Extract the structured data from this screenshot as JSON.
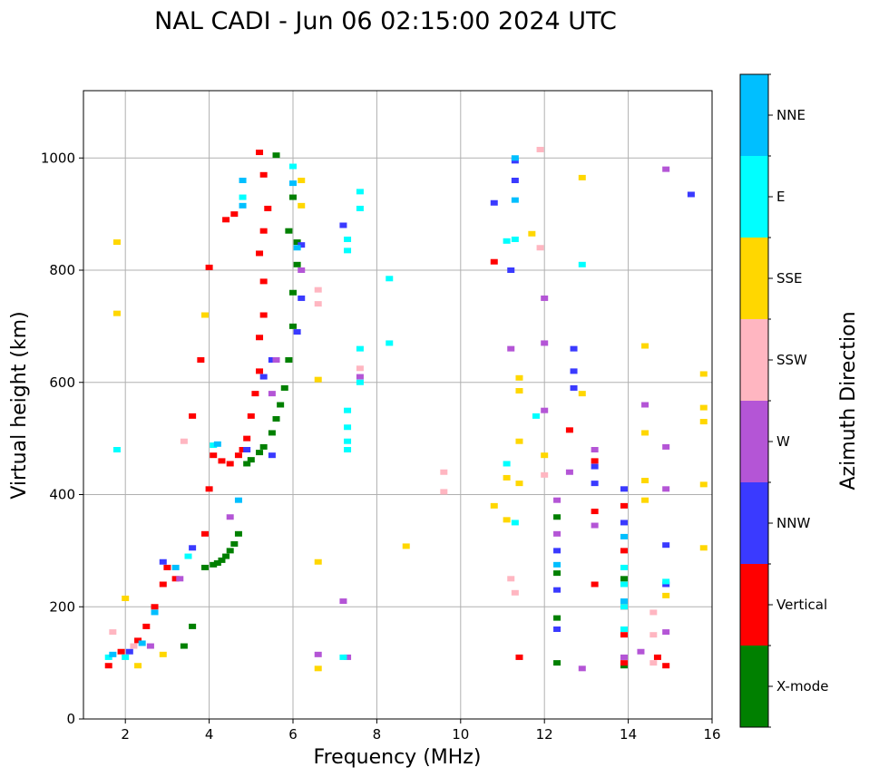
{
  "chart_data": {
    "type": "scatter",
    "title": "NAL CADI - Jun 06 02:15:00 2024 UTC",
    "xlabel": "Frequency (MHz)",
    "ylabel": "Virtual height (km)",
    "xlim": [
      1.0,
      16.0
    ],
    "ylim": [
      0,
      1120
    ],
    "xticks": [
      2,
      4,
      6,
      8,
      10,
      12,
      14,
      16
    ],
    "yticks": [
      0,
      200,
      400,
      600,
      800,
      1000
    ],
    "grid": true,
    "colorbar": {
      "label": "Azimuth Direction",
      "categories": [
        {
          "name": "X-mode",
          "color": "#008000"
        },
        {
          "name": "Vertical",
          "color": "#ff0000"
        },
        {
          "name": "NNW",
          "color": "#3a3aff"
        },
        {
          "name": "W",
          "color": "#b455d6"
        },
        {
          "name": "SSW",
          "color": "#ffb6c1"
        },
        {
          "name": "SSE",
          "color": "#ffd700"
        },
        {
          "name": "E",
          "color": "#00ffff"
        },
        {
          "name": "NNE",
          "color": "#00bfff"
        }
      ]
    },
    "series": [
      {
        "name": "X-mode",
        "points": [
          [
            3.4,
            130
          ],
          [
            3.6,
            165
          ],
          [
            3.9,
            270
          ],
          [
            4.1,
            275
          ],
          [
            4.2,
            278
          ],
          [
            4.3,
            283
          ],
          [
            4.4,
            290
          ],
          [
            4.5,
            300
          ],
          [
            4.6,
            312
          ],
          [
            4.7,
            330
          ],
          [
            4.9,
            455
          ],
          [
            5.0,
            462
          ],
          [
            5.2,
            475
          ],
          [
            5.3,
            485
          ],
          [
            5.5,
            510
          ],
          [
            5.6,
            535
          ],
          [
            5.7,
            560
          ],
          [
            5.8,
            590
          ],
          [
            5.9,
            640
          ],
          [
            6.0,
            700
          ],
          [
            6.0,
            760
          ],
          [
            6.1,
            810
          ],
          [
            6.1,
            850
          ],
          [
            5.9,
            870
          ],
          [
            6.0,
            930
          ],
          [
            5.6,
            1005
          ],
          [
            12.3,
            100
          ],
          [
            12.3,
            180
          ],
          [
            12.3,
            260
          ],
          [
            12.3,
            360
          ],
          [
            13.9,
            95
          ],
          [
            13.9,
            250
          ]
        ]
      },
      {
        "name": "Vertical",
        "points": [
          [
            1.6,
            95
          ],
          [
            1.9,
            120
          ],
          [
            2.3,
            140
          ],
          [
            2.5,
            165
          ],
          [
            2.7,
            200
          ],
          [
            2.9,
            240
          ],
          [
            3.0,
            270
          ],
          [
            3.2,
            250
          ],
          [
            3.9,
            330
          ],
          [
            4.0,
            410
          ],
          [
            4.1,
            470
          ],
          [
            4.3,
            460
          ],
          [
            4.5,
            455
          ],
          [
            4.7,
            470
          ],
          [
            4.8,
            480
          ],
          [
            4.9,
            500
          ],
          [
            5.0,
            540
          ],
          [
            5.1,
            580
          ],
          [
            5.2,
            620
          ],
          [
            5.2,
            680
          ],
          [
            5.3,
            720
          ],
          [
            5.3,
            780
          ],
          [
            5.2,
            830
          ],
          [
            5.3,
            870
          ],
          [
            5.4,
            910
          ],
          [
            5.3,
            970
          ],
          [
            5.2,
            1010
          ],
          [
            4.4,
            890
          ],
          [
            4.6,
            900
          ],
          [
            4.0,
            805
          ],
          [
            3.8,
            640
          ],
          [
            3.6,
            540
          ],
          [
            12.6,
            515
          ],
          [
            13.2,
            240
          ],
          [
            13.2,
            370
          ],
          [
            13.2,
            460
          ],
          [
            13.9,
            100
          ],
          [
            13.9,
            150
          ],
          [
            13.9,
            200
          ],
          [
            13.9,
            300
          ],
          [
            13.9,
            380
          ],
          [
            14.7,
            110
          ],
          [
            14.9,
            95
          ],
          [
            10.8,
            815
          ],
          [
            11.4,
            110
          ]
        ]
      },
      {
        "name": "NNW",
        "points": [
          [
            2.1,
            120
          ],
          [
            2.9,
            280
          ],
          [
            3.6,
            305
          ],
          [
            4.9,
            480
          ],
          [
            5.5,
            470
          ],
          [
            6.2,
            845
          ],
          [
            6.2,
            750
          ],
          [
            6.1,
            690
          ],
          [
            5.5,
            640
          ],
          [
            5.3,
            610
          ],
          [
            7.2,
            880
          ],
          [
            10.8,
            920
          ],
          [
            11.3,
            995
          ],
          [
            11.3,
            960
          ],
          [
            11.2,
            800
          ],
          [
            12.3,
            160
          ],
          [
            12.3,
            230
          ],
          [
            12.3,
            300
          ],
          [
            13.2,
            420
          ],
          [
            13.2,
            450
          ],
          [
            12.7,
            590
          ],
          [
            12.7,
            620
          ],
          [
            12.7,
            660
          ],
          [
            13.9,
            350
          ],
          [
            13.9,
            410
          ],
          [
            14.9,
            240
          ],
          [
            14.9,
            310
          ],
          [
            15.5,
            935
          ]
        ]
      },
      {
        "name": "W",
        "points": [
          [
            2.6,
            130
          ],
          [
            3.3,
            250
          ],
          [
            4.5,
            360
          ],
          [
            5.5,
            580
          ],
          [
            5.6,
            640
          ],
          [
            6.2,
            800
          ],
          [
            6.6,
            115
          ],
          [
            7.3,
            110
          ],
          [
            7.2,
            210
          ],
          [
            7.6,
            610
          ],
          [
            11.2,
            660
          ],
          [
            12.0,
            670
          ],
          [
            12.0,
            750
          ],
          [
            12.0,
            550
          ],
          [
            12.3,
            330
          ],
          [
            12.3,
            390
          ],
          [
            12.6,
            440
          ],
          [
            13.2,
            345
          ],
          [
            13.2,
            480
          ],
          [
            12.9,
            90
          ],
          [
            13.9,
            110
          ],
          [
            14.3,
            120
          ],
          [
            14.4,
            560
          ],
          [
            14.9,
            155
          ],
          [
            14.9,
            410
          ],
          [
            14.9,
            485
          ],
          [
            14.9,
            980
          ]
        ]
      },
      {
        "name": "SSW",
        "points": [
          [
            1.7,
            155
          ],
          [
            2.2,
            130
          ],
          [
            3.4,
            495
          ],
          [
            6.6,
            765
          ],
          [
            6.6,
            740
          ],
          [
            7.6,
            625
          ],
          [
            11.2,
            250
          ],
          [
            11.3,
            225
          ],
          [
            11.9,
            1015
          ],
          [
            11.9,
            840
          ],
          [
            12.0,
            435
          ],
          [
            14.6,
            100
          ],
          [
            14.6,
            150
          ],
          [
            14.6,
            190
          ],
          [
            9.6,
            440
          ],
          [
            9.6,
            405
          ]
        ]
      },
      {
        "name": "SSE",
        "points": [
          [
            1.8,
            850
          ],
          [
            1.8,
            723
          ],
          [
            2.0,
            215
          ],
          [
            2.3,
            95
          ],
          [
            2.9,
            115
          ],
          [
            3.9,
            720
          ],
          [
            6.2,
            960
          ],
          [
            6.2,
            915
          ],
          [
            6.6,
            605
          ],
          [
            6.6,
            280
          ],
          [
            6.6,
            90
          ],
          [
            8.7,
            308
          ],
          [
            10.8,
            380
          ],
          [
            11.1,
            430
          ],
          [
            11.1,
            355
          ],
          [
            11.4,
            608
          ],
          [
            11.4,
            585
          ],
          [
            11.4,
            495
          ],
          [
            11.4,
            420
          ],
          [
            11.7,
            865
          ],
          [
            12.0,
            470
          ],
          [
            12.9,
            580
          ],
          [
            12.9,
            965
          ],
          [
            14.4,
            665
          ],
          [
            14.4,
            510
          ],
          [
            14.4,
            425
          ],
          [
            14.4,
            390
          ],
          [
            14.9,
            220
          ],
          [
            15.8,
            615
          ],
          [
            15.8,
            555
          ],
          [
            15.8,
            530
          ],
          [
            15.8,
            418
          ],
          [
            15.8,
            305
          ]
        ]
      },
      {
        "name": "E",
        "points": [
          [
            1.6,
            110
          ],
          [
            1.8,
            480
          ],
          [
            2.0,
            110
          ],
          [
            3.5,
            290
          ],
          [
            4.1,
            488
          ],
          [
            4.8,
            930
          ],
          [
            6.0,
            985
          ],
          [
            7.6,
            940
          ],
          [
            7.6,
            910
          ],
          [
            7.6,
            660
          ],
          [
            7.6,
            600
          ],
          [
            7.3,
            855
          ],
          [
            7.3,
            835
          ],
          [
            7.3,
            550
          ],
          [
            7.3,
            520
          ],
          [
            7.3,
            495
          ],
          [
            7.3,
            480
          ],
          [
            8.3,
            785
          ],
          [
            8.3,
            670
          ],
          [
            11.1,
            852
          ],
          [
            11.1,
            455
          ],
          [
            11.3,
            350
          ],
          [
            11.3,
            855
          ],
          [
            11.8,
            540
          ],
          [
            12.9,
            810
          ],
          [
            13.9,
            160
          ],
          [
            13.9,
            200
          ],
          [
            13.9,
            240
          ],
          [
            13.9,
            270
          ],
          [
            14.9,
            245
          ],
          [
            7.2,
            110
          ]
        ]
      },
      {
        "name": "NNE",
        "points": [
          [
            1.7,
            115
          ],
          [
            2.4,
            135
          ],
          [
            2.7,
            190
          ],
          [
            3.2,
            270
          ],
          [
            4.2,
            490
          ],
          [
            4.7,
            390
          ],
          [
            4.8,
            960
          ],
          [
            4.8,
            915
          ],
          [
            6.0,
            955
          ],
          [
            6.1,
            840
          ],
          [
            11.3,
            925
          ],
          [
            11.3,
            1000
          ],
          [
            13.9,
            325
          ],
          [
            13.9,
            210
          ],
          [
            12.3,
            275
          ]
        ]
      }
    ]
  }
}
